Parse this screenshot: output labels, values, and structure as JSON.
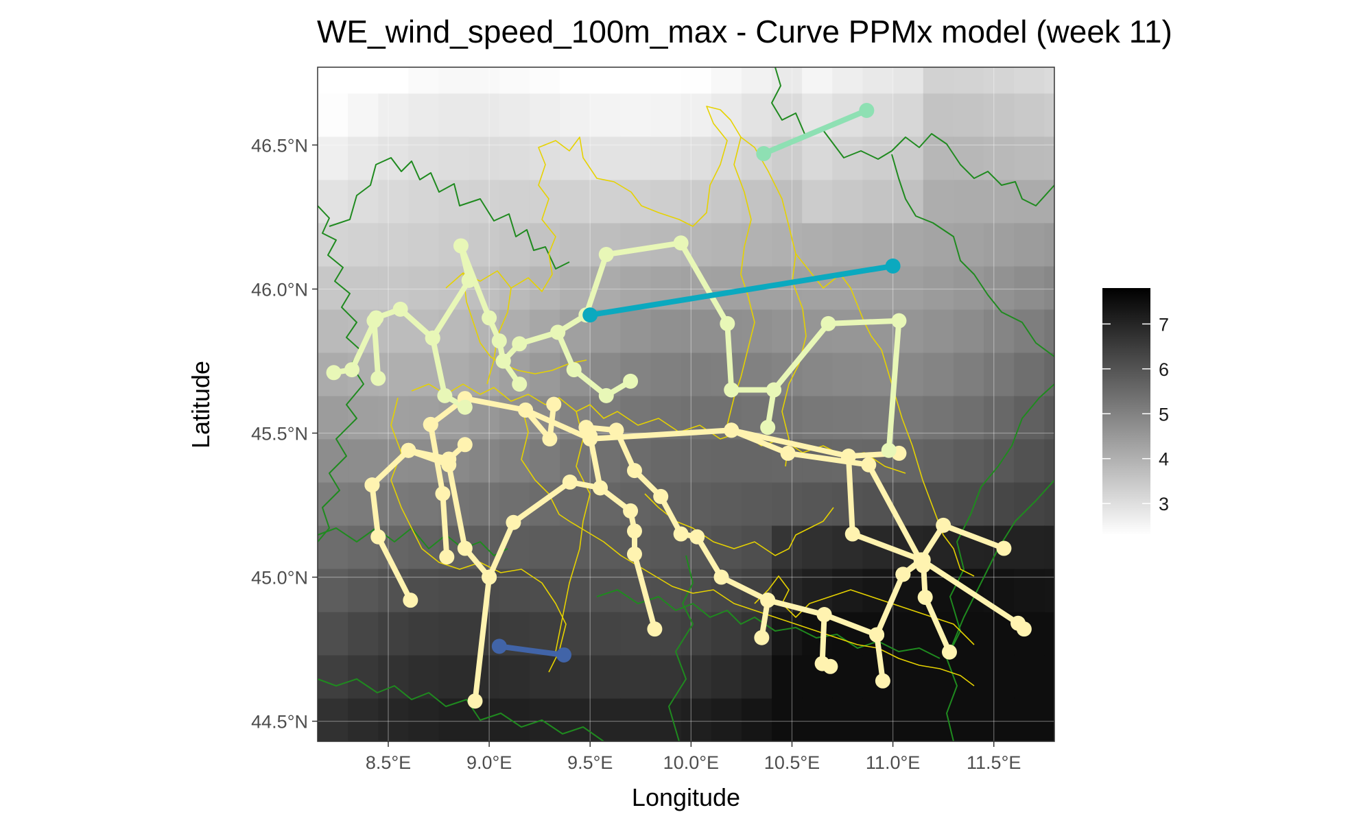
{
  "chart_data": {
    "type": "map",
    "title": "WE_wind_speed_100m_max - Curve PPMx model (week 11)",
    "xlabel": "Longitude",
    "ylabel": "Latitude",
    "xlim": [
      8.15,
      11.8
    ],
    "ylim": [
      44.43,
      46.77
    ],
    "x_ticks": [
      8.5,
      9.0,
      9.5,
      10.0,
      10.5,
      11.0,
      11.5
    ],
    "x_tick_labels": [
      "8.5°E",
      "9.0°E",
      "9.5°E",
      "10.0°E",
      "10.5°E",
      "11.0°E",
      "11.5°E"
    ],
    "y_ticks": [
      44.5,
      45.0,
      45.5,
      46.0,
      46.5
    ],
    "y_tick_labels": [
      "44.5°N",
      "45.0°N",
      "45.5°N",
      "46.0°N",
      "46.5°N"
    ],
    "grid": true,
    "background_raster": {
      "variable": "wind speed 100m max",
      "range": [
        2.3,
        7.8
      ],
      "colormap": [
        "#ffffff",
        "#000000"
      ],
      "grid_step": 0.15
    },
    "legend": {
      "position": "right",
      "ticks": [
        3,
        4,
        5,
        6,
        7
      ],
      "tick_labels": [
        "3",
        "4",
        "5",
        "6",
        "7"
      ],
      "min": 2.3,
      "max": 7.8
    },
    "series": [
      {
        "color": "#fff3b0",
        "segments": [
          [
            [
              8.42,
              45.32
            ],
            [
              8.6,
              45.44
            ],
            [
              8.8,
              45.41
            ],
            [
              8.88,
              45.46
            ]
          ],
          [
            [
              8.42,
              45.32
            ],
            [
              8.45,
              45.14
            ],
            [
              8.61,
              44.92
            ]
          ],
          [
            [
              8.6,
              45.44
            ],
            [
              8.8,
              45.39
            ],
            [
              8.88,
              45.1
            ],
            [
              9.0,
              45.0
            ],
            [
              8.93,
              44.57
            ]
          ],
          [
            [
              9.0,
              45.0
            ],
            [
              9.12,
              45.19
            ],
            [
              9.4,
              45.33
            ],
            [
              9.55,
              45.31
            ],
            [
              9.7,
              45.23
            ],
            [
              9.72,
              45.16
            ],
            [
              9.72,
              45.08
            ],
            [
              9.82,
              44.82
            ]
          ],
          [
            [
              9.55,
              45.31
            ],
            [
              9.5,
              45.49
            ],
            [
              9.48,
              45.52
            ],
            [
              9.63,
              45.51
            ],
            [
              9.72,
              45.37
            ],
            [
              9.85,
              45.28
            ],
            [
              9.95,
              45.15
            ],
            [
              10.03,
              45.14
            ],
            [
              10.15,
              45.0
            ],
            [
              10.38,
              44.92
            ],
            [
              10.66,
              44.87
            ],
            [
              10.92,
              44.8
            ],
            [
              10.95,
              44.64
            ]
          ],
          [
            [
              10.38,
              44.92
            ],
            [
              10.35,
              44.79
            ]
          ],
          [
            [
              10.66,
              44.87
            ],
            [
              10.65,
              44.7
            ],
            [
              10.69,
              44.69
            ]
          ],
          [
            [
              10.92,
              44.8
            ],
            [
              11.05,
              45.01
            ],
            [
              11.14,
              45.06
            ],
            [
              11.25,
              45.18
            ],
            [
              11.55,
              45.1
            ]
          ],
          [
            [
              11.05,
              45.01
            ],
            [
              11.15,
              45.06
            ],
            [
              11.16,
              44.93
            ],
            [
              11.28,
              44.74
            ]
          ],
          [
            [
              11.14,
              45.06
            ],
            [
              11.62,
              44.84
            ],
            [
              11.65,
              44.82
            ]
          ],
          [
            [
              8.71,
              45.53
            ],
            [
              8.88,
              45.62
            ],
            [
              9.18,
              45.58
            ],
            [
              9.5,
              45.48
            ],
            [
              10.2,
              45.51
            ],
            [
              10.48,
              45.43
            ],
            [
              10.88,
              45.39
            ],
            [
              11.15,
              45.04
            ]
          ],
          [
            [
              10.2,
              45.51
            ],
            [
              10.78,
              45.42
            ],
            [
              10.8,
              45.15
            ],
            [
              11.14,
              45.06
            ]
          ],
          [
            [
              9.18,
              45.58
            ],
            [
              9.3,
              45.48
            ],
            [
              9.32,
              45.6
            ]
          ],
          [
            [
              8.71,
              45.53
            ],
            [
              8.77,
              45.29
            ],
            [
              8.79,
              45.07
            ]
          ],
          [
            [
              10.78,
              45.42
            ],
            [
              11.03,
              45.43
            ]
          ]
        ]
      },
      {
        "color": "#e8f7b7",
        "segments": [
          [
            [
              8.23,
              45.71
            ],
            [
              8.32,
              45.72
            ],
            [
              8.44,
              45.9
            ],
            [
              8.56,
              45.93
            ],
            [
              8.72,
              45.83
            ],
            [
              8.78,
              45.63
            ],
            [
              8.88,
              45.59
            ]
          ],
          [
            [
              8.43,
              45.89
            ],
            [
              8.45,
              45.69
            ]
          ],
          [
            [
              8.72,
              45.83
            ],
            [
              8.9,
              46.03
            ],
            [
              8.86,
              46.15
            ],
            [
              9.0,
              45.9
            ],
            [
              9.05,
              45.82
            ],
            [
              9.07,
              45.75
            ],
            [
              9.15,
              45.81
            ],
            [
              9.34,
              45.85
            ],
            [
              9.48,
              45.91
            ]
          ],
          [
            [
              9.07,
              45.75
            ],
            [
              9.15,
              45.67
            ]
          ],
          [
            [
              9.34,
              45.85
            ],
            [
              9.42,
              45.72
            ],
            [
              9.58,
              45.63
            ],
            [
              9.7,
              45.68
            ]
          ],
          [
            [
              9.48,
              45.91
            ],
            [
              9.58,
              46.12
            ],
            [
              9.95,
              46.16
            ],
            [
              10.18,
              45.88
            ],
            [
              10.2,
              45.65
            ],
            [
              10.41,
              45.65
            ],
            [
              10.38,
              45.52
            ]
          ],
          [
            [
              10.41,
              45.65
            ],
            [
              10.68,
              45.88
            ],
            [
              11.03,
              45.89
            ],
            [
              10.98,
              45.44
            ]
          ]
        ]
      },
      {
        "color": "#0ba9bf",
        "segments": [
          [
            [
              9.5,
              45.91
            ],
            [
              11.0,
              46.08
            ]
          ]
        ]
      },
      {
        "color": "#8ee0b3",
        "segments": [
          [
            [
              10.36,
              46.47
            ],
            [
              10.87,
              46.62
            ]
          ]
        ]
      },
      {
        "color": "#4164a8",
        "segments": [
          [
            [
              9.05,
              44.76
            ],
            [
              9.37,
              44.73
            ]
          ]
        ]
      }
    ]
  }
}
